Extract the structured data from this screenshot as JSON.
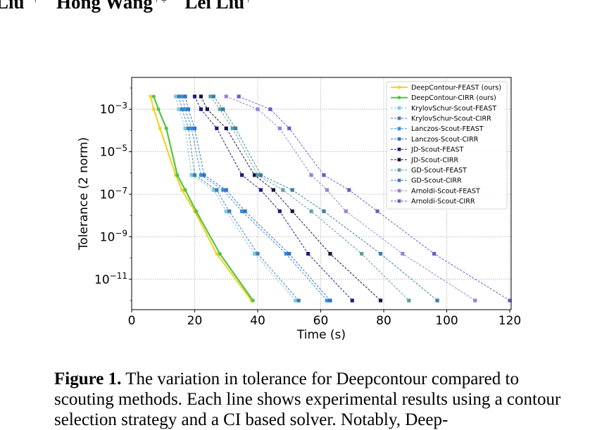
{
  "header": {
    "authors": [
      {
        "name": "Liu",
        "marks": "* †"
      },
      {
        "name": "Hong Wang",
        "marks": "† ‡"
      },
      {
        "name": "Lei Liu",
        "marks": "†"
      }
    ]
  },
  "figure": {
    "label": "Figure 1.",
    "caption": "The variation in tolerance for Deepcontour compared to scouting methods. Each line shows experimental results using a contour selection strategy and a CI based solver. Notably, Deep-"
  },
  "chart_data": {
    "type": "line",
    "title": "",
    "xlabel": "Time (s)",
    "ylabel": "Tolerance (2 norm)",
    "xlim": [
      0,
      120
    ],
    "ylim_log10": [
      -12,
      -2
    ],
    "yscale": "log",
    "xticks": [
      0,
      20,
      40,
      60,
      80,
      100,
      120
    ],
    "xtick_labels": [
      "0",
      "20",
      "40",
      "60",
      "80",
      "100",
      "120"
    ],
    "yticks_exp": [
      -3,
      -5,
      -7,
      -9,
      -11
    ],
    "ytick_labels": [
      "10",
      "10",
      "10",
      "10",
      "10"
    ],
    "ytick_exponents": [
      "−3",
      "−5",
      "−7",
      "−9",
      "−11"
    ],
    "grid": true,
    "legend_position": "top-right",
    "y_log10": [
      -2.4,
      -3.0,
      -3.9,
      -6.1,
      -6.8,
      -7.8,
      -9.8,
      -12.0
    ],
    "series": [
      {
        "name": "DeepContour-FEAST (ours)",
        "color": "#f2d32a",
        "style": "solid",
        "x": [
          6,
          7,
          9,
          14,
          16,
          20,
          27,
          38
        ]
      },
      {
        "name": "DeepContour-CIRR (ours)",
        "color": "#52c447",
        "style": "solid",
        "x": [
          7,
          8.5,
          11,
          14.5,
          17,
          20.5,
          28,
          38.5
        ]
      },
      {
        "name": "KrylovSchur-Scout-FEAST",
        "color": "#7ec8e6",
        "style": "dashed",
        "x": [
          14,
          15,
          17,
          19,
          26,
          30,
          39,
          52
        ]
      },
      {
        "name": "KrylovSchur-Scout-CIRR",
        "color": "#3f7fb0",
        "style": "dashed",
        "x": [
          15,
          16,
          18,
          20,
          27,
          31,
          40,
          53
        ]
      },
      {
        "name": "Lanczos-Scout-FEAST",
        "color": "#2e8fe6",
        "style": "dashed",
        "x": [
          16,
          17,
          19,
          22,
          29,
          35,
          49,
          62
        ]
      },
      {
        "name": "Lanczos-Scout-CIRR",
        "color": "#3a6fc4",
        "style": "dashed",
        "x": [
          17,
          18,
          20,
          23,
          30,
          36,
          50,
          63
        ]
      },
      {
        "name": "JD-Scout-FEAST",
        "color": "#1c1c7e",
        "style": "dashed",
        "x": [
          20,
          22,
          27,
          35,
          41,
          47,
          56,
          70
        ]
      },
      {
        "name": "JD-Scout-CIRR",
        "color": "#14143e",
        "style": "dashed",
        "x": [
          22,
          24,
          30,
          39,
          45,
          51,
          63,
          79
        ]
      },
      {
        "name": "GD-Scout-FEAST",
        "color": "#5e9ea0",
        "style": "dashed",
        "x": [
          25,
          28,
          32,
          40,
          48,
          57,
          73,
          88
        ]
      },
      {
        "name": "GD-Scout-CIRR",
        "color": "#3a7ea6",
        "style": "dashed",
        "x": [
          26,
          29,
          33,
          41,
          51,
          61,
          79,
          97
        ]
      },
      {
        "name": "Arnoldi-Scout-FEAST",
        "color": "#9b7fd8",
        "style": "dashed",
        "x": [
          30,
          40,
          47,
          57,
          62,
          68,
          86,
          109
        ]
      },
      {
        "name": "Arnoldi-Scout-CIRR",
        "color": "#6a5bc4",
        "style": "dashed",
        "x": [
          34,
          44,
          50,
          61,
          69,
          78,
          96,
          120
        ]
      }
    ]
  }
}
